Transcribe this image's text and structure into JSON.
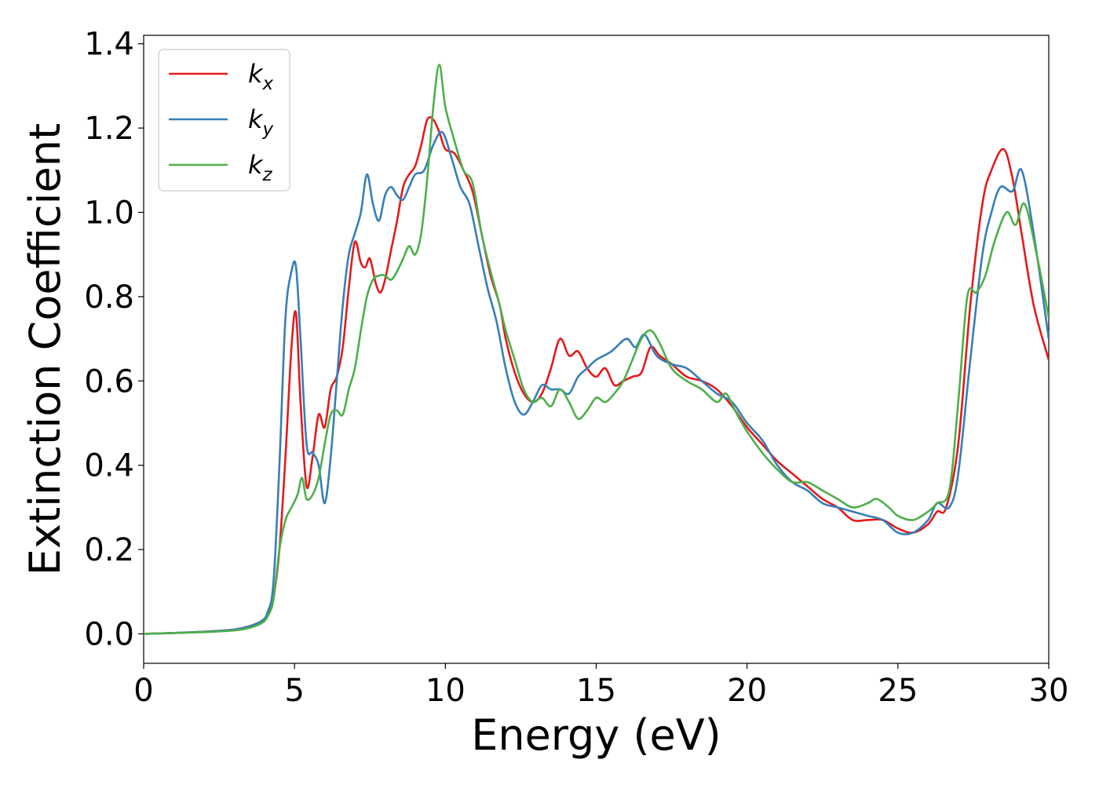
{
  "chart_data": {
    "type": "line",
    "title": "",
    "xlabel": "Energy (eV)",
    "ylabel": "Extinction Coefficient",
    "xlim": [
      0,
      30
    ],
    "ylim": [
      -0.07,
      1.42
    ],
    "xticks": [
      "0",
      "5",
      "10",
      "15",
      "20",
      "25",
      "30"
    ],
    "yticks": [
      "0.0",
      "0.2",
      "0.4",
      "0.6",
      "0.8",
      "1.0",
      "1.2",
      "1.4"
    ],
    "grid": false,
    "legend_position": "top-left",
    "series": [
      {
        "name": "k",
        "subscript": "x",
        "color": "#e41a1c",
        "points": [
          [
            0,
            0
          ],
          [
            1,
            0.002
          ],
          [
            2,
            0.005
          ],
          [
            3,
            0.01
          ],
          [
            3.5,
            0.018
          ],
          [
            3.9,
            0.03
          ],
          [
            4.1,
            0.045
          ],
          [
            4.3,
            0.085
          ],
          [
            4.5,
            0.2
          ],
          [
            4.7,
            0.42
          ],
          [
            4.9,
            0.68
          ],
          [
            5.05,
            0.76
          ],
          [
            5.2,
            0.55
          ],
          [
            5.4,
            0.35
          ],
          [
            5.6,
            0.42
          ],
          [
            5.8,
            0.52
          ],
          [
            6.0,
            0.49
          ],
          [
            6.2,
            0.58
          ],
          [
            6.4,
            0.61
          ],
          [
            6.6,
            0.68
          ],
          [
            6.8,
            0.82
          ],
          [
            7.0,
            0.93
          ],
          [
            7.2,
            0.88
          ],
          [
            7.35,
            0.87
          ],
          [
            7.5,
            0.89
          ],
          [
            7.7,
            0.83
          ],
          [
            7.85,
            0.81
          ],
          [
            8.0,
            0.84
          ],
          [
            8.2,
            0.91
          ],
          [
            8.4,
            0.98
          ],
          [
            8.6,
            1.06
          ],
          [
            8.8,
            1.09
          ],
          [
            9.0,
            1.11
          ],
          [
            9.2,
            1.16
          ],
          [
            9.4,
            1.22
          ],
          [
            9.6,
            1.22
          ],
          [
            9.8,
            1.19
          ],
          [
            10.0,
            1.15
          ],
          [
            10.3,
            1.14
          ],
          [
            10.6,
            1.1
          ],
          [
            10.9,
            1.05
          ],
          [
            11.2,
            0.95
          ],
          [
            11.5,
            0.85
          ],
          [
            11.8,
            0.78
          ],
          [
            12.0,
            0.7
          ],
          [
            12.3,
            0.62
          ],
          [
            12.6,
            0.57
          ],
          [
            12.9,
            0.55
          ],
          [
            13.2,
            0.57
          ],
          [
            13.5,
            0.63
          ],
          [
            13.8,
            0.7
          ],
          [
            14.1,
            0.66
          ],
          [
            14.4,
            0.67
          ],
          [
            14.7,
            0.63
          ],
          [
            15.0,
            0.61
          ],
          [
            15.3,
            0.63
          ],
          [
            15.6,
            0.59
          ],
          [
            15.9,
            0.6
          ],
          [
            16.2,
            0.61
          ],
          [
            16.5,
            0.62
          ],
          [
            16.8,
            0.68
          ],
          [
            17.1,
            0.66
          ],
          [
            17.5,
            0.64
          ],
          [
            18.0,
            0.61
          ],
          [
            18.5,
            0.6
          ],
          [
            19.0,
            0.58
          ],
          [
            19.5,
            0.54
          ],
          [
            20.0,
            0.49
          ],
          [
            20.5,
            0.45
          ],
          [
            21.0,
            0.41
          ],
          [
            21.5,
            0.38
          ],
          [
            22.0,
            0.35
          ],
          [
            22.5,
            0.32
          ],
          [
            23.0,
            0.3
          ],
          [
            23.5,
            0.27
          ],
          [
            24.0,
            0.27
          ],
          [
            24.5,
            0.27
          ],
          [
            25.0,
            0.25
          ],
          [
            25.5,
            0.24
          ],
          [
            26.0,
            0.26
          ],
          [
            26.3,
            0.29
          ],
          [
            26.6,
            0.3
          ],
          [
            27.0,
            0.45
          ],
          [
            27.4,
            0.78
          ],
          [
            27.8,
            1.02
          ],
          [
            28.1,
            1.1
          ],
          [
            28.5,
            1.15
          ],
          [
            28.8,
            1.08
          ],
          [
            29.1,
            0.95
          ],
          [
            29.5,
            0.78
          ],
          [
            30.0,
            0.65
          ]
        ]
      },
      {
        "name": "k",
        "subscript": "y",
        "color": "#377eb8",
        "points": [
          [
            0,
            0
          ],
          [
            1,
            0.002
          ],
          [
            2,
            0.005
          ],
          [
            3,
            0.01
          ],
          [
            3.5,
            0.018
          ],
          [
            3.9,
            0.03
          ],
          [
            4.1,
            0.05
          ],
          [
            4.3,
            0.12
          ],
          [
            4.5,
            0.4
          ],
          [
            4.7,
            0.75
          ],
          [
            4.9,
            0.86
          ],
          [
            5.05,
            0.87
          ],
          [
            5.2,
            0.7
          ],
          [
            5.4,
            0.45
          ],
          [
            5.6,
            0.43
          ],
          [
            5.8,
            0.4
          ],
          [
            6.0,
            0.31
          ],
          [
            6.2,
            0.42
          ],
          [
            6.4,
            0.6
          ],
          [
            6.6,
            0.78
          ],
          [
            6.8,
            0.9
          ],
          [
            7.0,
            0.95
          ],
          [
            7.2,
            1.0
          ],
          [
            7.4,
            1.09
          ],
          [
            7.6,
            1.02
          ],
          [
            7.8,
            0.98
          ],
          [
            8.0,
            1.04
          ],
          [
            8.2,
            1.06
          ],
          [
            8.4,
            1.04
          ],
          [
            8.6,
            1.03
          ],
          [
            8.8,
            1.06
          ],
          [
            9.0,
            1.09
          ],
          [
            9.3,
            1.1
          ],
          [
            9.6,
            1.16
          ],
          [
            9.9,
            1.19
          ],
          [
            10.2,
            1.13
          ],
          [
            10.5,
            1.06
          ],
          [
            10.8,
            1.02
          ],
          [
            11.1,
            0.92
          ],
          [
            11.4,
            0.82
          ],
          [
            11.7,
            0.74
          ],
          [
            12.0,
            0.63
          ],
          [
            12.3,
            0.55
          ],
          [
            12.6,
            0.52
          ],
          [
            12.9,
            0.55
          ],
          [
            13.2,
            0.59
          ],
          [
            13.5,
            0.58
          ],
          [
            13.8,
            0.58
          ],
          [
            14.1,
            0.57
          ],
          [
            14.4,
            0.61
          ],
          [
            14.7,
            0.63
          ],
          [
            15.0,
            0.65
          ],
          [
            15.5,
            0.67
          ],
          [
            16.0,
            0.7
          ],
          [
            16.3,
            0.68
          ],
          [
            16.6,
            0.71
          ],
          [
            17.0,
            0.66
          ],
          [
            17.5,
            0.64
          ],
          [
            18.0,
            0.63
          ],
          [
            18.5,
            0.6
          ],
          [
            19.0,
            0.57
          ],
          [
            19.5,
            0.55
          ],
          [
            20.0,
            0.5
          ],
          [
            20.5,
            0.46
          ],
          [
            21.0,
            0.4
          ],
          [
            21.5,
            0.36
          ],
          [
            22.0,
            0.34
          ],
          [
            22.5,
            0.31
          ],
          [
            23.0,
            0.3
          ],
          [
            23.5,
            0.29
          ],
          [
            24.0,
            0.28
          ],
          [
            24.5,
            0.27
          ],
          [
            25.0,
            0.24
          ],
          [
            25.5,
            0.24
          ],
          [
            26.0,
            0.27
          ],
          [
            26.3,
            0.31
          ],
          [
            26.7,
            0.3
          ],
          [
            27.0,
            0.38
          ],
          [
            27.4,
            0.65
          ],
          [
            27.8,
            0.9
          ],
          [
            28.1,
            1.0
          ],
          [
            28.4,
            1.06
          ],
          [
            28.8,
            1.05
          ],
          [
            29.1,
            1.1
          ],
          [
            29.5,
            0.95
          ],
          [
            30.0,
            0.7
          ]
        ]
      },
      {
        "name": "k",
        "subscript": "z",
        "color": "#4daf4a",
        "points": [
          [
            0,
            0
          ],
          [
            1,
            0.002
          ],
          [
            2,
            0.004
          ],
          [
            3,
            0.008
          ],
          [
            3.5,
            0.014
          ],
          [
            3.9,
            0.025
          ],
          [
            4.1,
            0.04
          ],
          [
            4.3,
            0.08
          ],
          [
            4.5,
            0.2
          ],
          [
            4.7,
            0.27
          ],
          [
            4.9,
            0.3
          ],
          [
            5.1,
            0.33
          ],
          [
            5.25,
            0.37
          ],
          [
            5.4,
            0.32
          ],
          [
            5.6,
            0.33
          ],
          [
            5.8,
            0.37
          ],
          [
            6.0,
            0.45
          ],
          [
            6.2,
            0.52
          ],
          [
            6.4,
            0.53
          ],
          [
            6.6,
            0.52
          ],
          [
            6.8,
            0.58
          ],
          [
            7.0,
            0.63
          ],
          [
            7.2,
            0.72
          ],
          [
            7.4,
            0.8
          ],
          [
            7.6,
            0.84
          ],
          [
            7.8,
            0.85
          ],
          [
            8.0,
            0.85
          ],
          [
            8.2,
            0.84
          ],
          [
            8.4,
            0.86
          ],
          [
            8.6,
            0.89
          ],
          [
            8.8,
            0.92
          ],
          [
            9.0,
            0.9
          ],
          [
            9.2,
            0.95
          ],
          [
            9.4,
            1.08
          ],
          [
            9.6,
            1.25
          ],
          [
            9.8,
            1.35
          ],
          [
            10.0,
            1.25
          ],
          [
            10.3,
            1.17
          ],
          [
            10.6,
            1.1
          ],
          [
            10.9,
            1.07
          ],
          [
            11.2,
            0.95
          ],
          [
            11.5,
            0.86
          ],
          [
            11.8,
            0.78
          ],
          [
            12.0,
            0.72
          ],
          [
            12.3,
            0.65
          ],
          [
            12.6,
            0.58
          ],
          [
            12.9,
            0.55
          ],
          [
            13.2,
            0.56
          ],
          [
            13.5,
            0.54
          ],
          [
            13.8,
            0.58
          ],
          [
            14.1,
            0.55
          ],
          [
            14.4,
            0.51
          ],
          [
            14.7,
            0.53
          ],
          [
            15.0,
            0.56
          ],
          [
            15.3,
            0.55
          ],
          [
            15.6,
            0.57
          ],
          [
            15.9,
            0.6
          ],
          [
            16.2,
            0.65
          ],
          [
            16.5,
            0.7
          ],
          [
            16.8,
            0.72
          ],
          [
            17.1,
            0.69
          ],
          [
            17.5,
            0.63
          ],
          [
            18.0,
            0.6
          ],
          [
            18.5,
            0.58
          ],
          [
            19.0,
            0.55
          ],
          [
            19.3,
            0.57
          ],
          [
            19.6,
            0.53
          ],
          [
            20.0,
            0.48
          ],
          [
            20.5,
            0.43
          ],
          [
            21.0,
            0.39
          ],
          [
            21.5,
            0.36
          ],
          [
            22.0,
            0.36
          ],
          [
            22.5,
            0.34
          ],
          [
            23.0,
            0.32
          ],
          [
            23.5,
            0.3
          ],
          [
            24.0,
            0.31
          ],
          [
            24.3,
            0.32
          ],
          [
            24.7,
            0.3
          ],
          [
            25.0,
            0.28
          ],
          [
            25.5,
            0.27
          ],
          [
            26.0,
            0.29
          ],
          [
            26.3,
            0.31
          ],
          [
            26.7,
            0.34
          ],
          [
            27.0,
            0.55
          ],
          [
            27.3,
            0.8
          ],
          [
            27.6,
            0.81
          ],
          [
            27.9,
            0.85
          ],
          [
            28.2,
            0.93
          ],
          [
            28.6,
            1.0
          ],
          [
            28.9,
            0.97
          ],
          [
            29.2,
            1.02
          ],
          [
            29.6,
            0.9
          ],
          [
            30.0,
            0.75
          ]
        ]
      }
    ]
  }
}
